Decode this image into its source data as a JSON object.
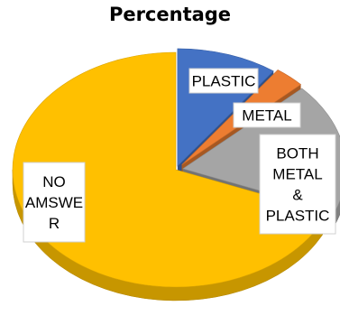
{
  "chart_data": {
    "type": "pie",
    "title": "Percentage",
    "slices": [
      {
        "label": "PLASTIC",
        "value": 10,
        "color": "#4472C4"
      },
      {
        "label": "METAL",
        "value": 3,
        "color": "#ED7D31"
      },
      {
        "label": "BOTH METAL & PLASTIC",
        "value": 18,
        "color": "#A5A5A5"
      },
      {
        "label": "NO AMSWER",
        "value": 69,
        "color": "#FFC000"
      }
    ],
    "legend": "none",
    "style": "3d"
  }
}
